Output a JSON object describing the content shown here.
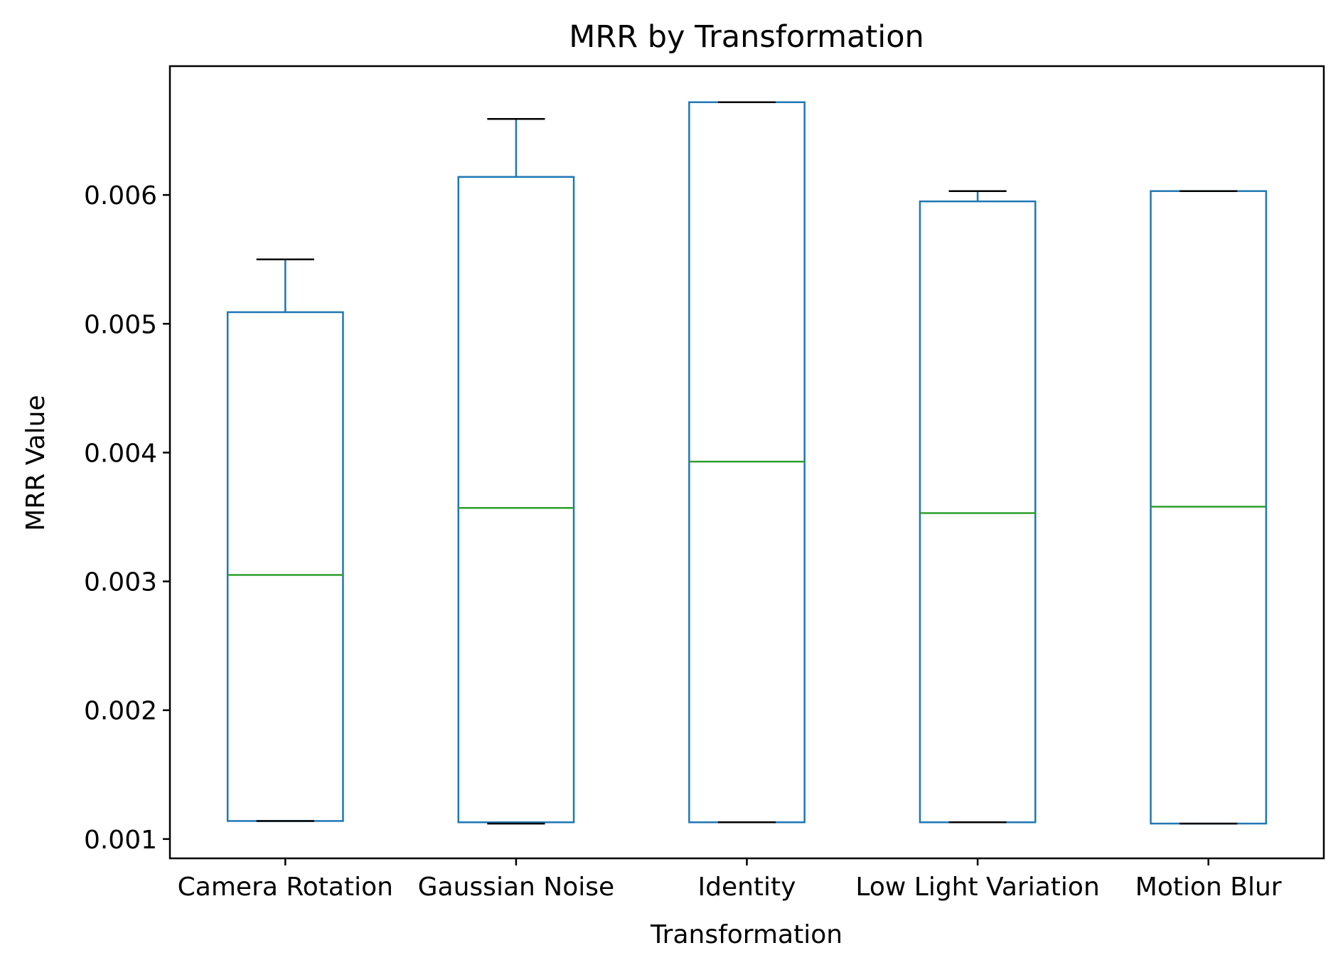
{
  "chart_data": {
    "type": "box",
    "title": "MRR by Transformation",
    "xlabel": "Transformation",
    "ylabel": "MRR Value",
    "categories": [
      "Camera Rotation",
      "Gaussian Noise",
      "Identity",
      "Low Light Variation",
      "Motion Blur"
    ],
    "boxes": [
      {
        "category": "Camera Rotation",
        "whisker_low": 0.00114,
        "q1": 0.00114,
        "median": 0.00305,
        "q3": 0.00509,
        "whisker_high": 0.0055
      },
      {
        "category": "Gaussian Noise",
        "whisker_low": 0.00112,
        "q1": 0.00113,
        "median": 0.00357,
        "q3": 0.00614,
        "whisker_high": 0.00659
      },
      {
        "category": "Identity",
        "whisker_low": 0.00113,
        "q1": 0.00113,
        "median": 0.00393,
        "q3": 0.00672,
        "whisker_high": 0.00672
      },
      {
        "category": "Low Light Variation",
        "whisker_low": 0.00113,
        "q1": 0.00113,
        "median": 0.00353,
        "q3": 0.00595,
        "whisker_high": 0.00603
      },
      {
        "category": "Motion Blur",
        "whisker_low": 0.00112,
        "q1": 0.00112,
        "median": 0.00358,
        "q3": 0.00603,
        "whisker_high": 0.00603
      }
    ],
    "yticks": [
      0.001,
      0.002,
      0.003,
      0.004,
      0.005,
      0.006
    ],
    "ytick_labels": [
      "0.001",
      "0.002",
      "0.003",
      "0.004",
      "0.005",
      "0.006"
    ],
    "ylim": [
      0.00085,
      0.007
    ],
    "grid": false,
    "legend": "none",
    "colors": {
      "box": "#1f77b4",
      "median": "#2ca02c",
      "cap": "#000000",
      "axes": "#000000"
    }
  }
}
